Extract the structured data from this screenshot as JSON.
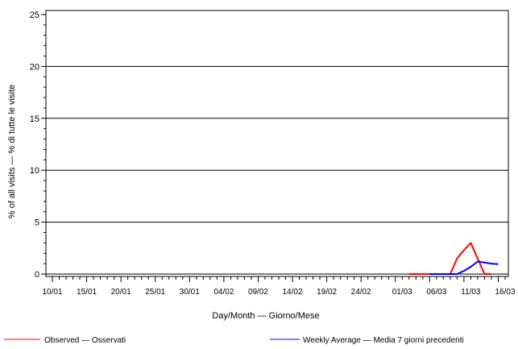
{
  "chart_data": {
    "type": "line",
    "title": "",
    "xlabel": "Day/Month — Giorno/Mese",
    "ylabel": "% of all visits — % di tutte le visite",
    "ylim": [
      0,
      25
    ],
    "yticks": [
      0,
      5,
      10,
      15,
      20,
      25
    ],
    "x_tick_labels": [
      "10/01",
      "15/01",
      "20/01",
      "25/01",
      "30/01",
      "04/02",
      "09/02",
      "14/02",
      "19/02",
      "24/02",
      "01/03",
      "06/03",
      "11/03",
      "16/03"
    ],
    "grid": "horizontal",
    "legend_position": "bottom",
    "series": [
      {
        "name": "Observed — Osservati",
        "color": "#ff0000",
        "x": [
          "02/03",
          "03/03",
          "04/03",
          "05/03",
          "06/03",
          "07/03",
          "08/03",
          "09/03",
          "10/03",
          "11/03",
          "12/03",
          "13/03",
          "14/03"
        ],
        "values": [
          0,
          0,
          0,
          0,
          0,
          0,
          0,
          1.5,
          2.3,
          3.0,
          1.5,
          0,
          0
        ]
      },
      {
        "name": "Weekly Average — Media 7 giorni precedenti",
        "color": "#0000ff",
        "x": [
          "05/03",
          "06/03",
          "07/03",
          "08/03",
          "09/03",
          "10/03",
          "11/03",
          "12/03",
          "13/03",
          "14/03",
          "15/03"
        ],
        "values": [
          0,
          0,
          0,
          0,
          0,
          0.3,
          0.7,
          1.2,
          1.1,
          1.0,
          0.95
        ]
      }
    ]
  }
}
